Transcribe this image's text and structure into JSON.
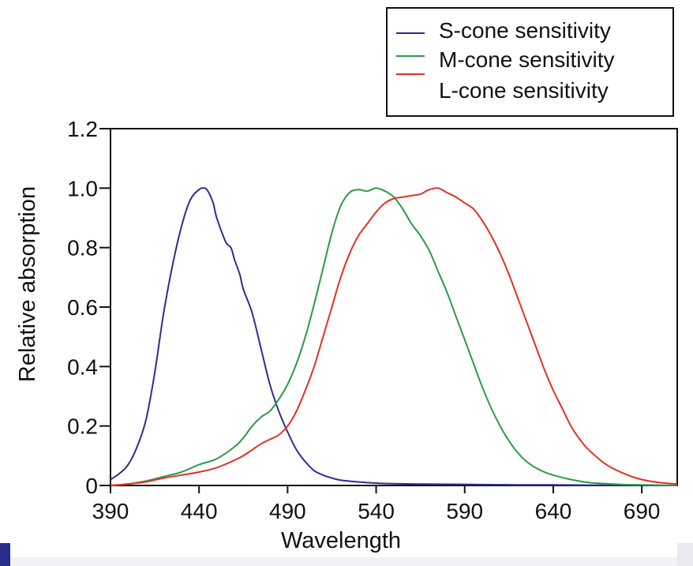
{
  "chart_data": {
    "type": "line",
    "xlabel": "Wavelength",
    "ylabel": "Relative absorption",
    "xlim": [
      390,
      710
    ],
    "ylim": [
      0,
      1.2
    ],
    "xticks": [
      390,
      440,
      490,
      540,
      590,
      640,
      690
    ],
    "yticks": [
      0,
      0.2,
      0.4,
      0.6,
      0.8,
      1.0,
      1.2
    ],
    "ytick_labels": [
      "0",
      "0.2",
      "0.4",
      "0.6",
      "0.8",
      "1.0",
      "1.2"
    ],
    "xtick_labels": [
      "390",
      "440",
      "490",
      "540",
      "590",
      "640",
      "690"
    ],
    "grid": false,
    "legend_position": "top-right",
    "legend_labels": [
      "S-cone sensitivity",
      "M-cone sensitivity",
      "L-cone sensitivity"
    ],
    "series": [
      {
        "name": "S-cone sensitivity",
        "color": "#2e2d8f",
        "x": [
          390,
          395,
          400,
          405,
          410,
          415,
          420,
          425,
          430,
          435,
          440,
          443,
          445,
          448,
          450,
          455,
          458,
          460,
          463,
          465,
          470,
          475,
          480,
          485,
          490,
          495,
          500,
          505,
          510,
          515,
          520,
          530,
          540,
          550,
          560,
          580,
          600,
          620,
          640,
          660,
          680,
          700,
          710
        ],
        "y": [
          0.02,
          0.04,
          0.07,
          0.13,
          0.22,
          0.38,
          0.58,
          0.74,
          0.87,
          0.96,
          0.995,
          1.0,
          0.99,
          0.95,
          0.9,
          0.82,
          0.8,
          0.76,
          0.71,
          0.66,
          0.58,
          0.46,
          0.34,
          0.25,
          0.18,
          0.12,
          0.08,
          0.05,
          0.035,
          0.025,
          0.018,
          0.012,
          0.008,
          0.006,
          0.005,
          0.004,
          0.003,
          0.002,
          0.002,
          0.001,
          0.001,
          0.0,
          0.0
        ]
      },
      {
        "name": "M-cone sensitivity",
        "color": "#2a9a4a",
        "x": [
          390,
          400,
          410,
          420,
          430,
          440,
          450,
          460,
          465,
          470,
          475,
          480,
          485,
          490,
          495,
          500,
          505,
          510,
          515,
          520,
          525,
          530,
          535,
          540,
          545,
          550,
          555,
          560,
          565,
          570,
          575,
          580,
          585,
          590,
          595,
          600,
          605,
          610,
          615,
          620,
          625,
          630,
          635,
          640,
          650,
          660,
          670,
          680,
          690,
          700,
          710
        ],
        "y": [
          0.0,
          0.005,
          0.015,
          0.03,
          0.045,
          0.07,
          0.09,
          0.13,
          0.16,
          0.2,
          0.23,
          0.25,
          0.29,
          0.34,
          0.41,
          0.5,
          0.61,
          0.73,
          0.85,
          0.94,
          0.985,
          0.995,
          0.99,
          1.0,
          0.99,
          0.97,
          0.93,
          0.88,
          0.84,
          0.79,
          0.72,
          0.65,
          0.57,
          0.49,
          0.41,
          0.33,
          0.26,
          0.2,
          0.15,
          0.11,
          0.08,
          0.06,
          0.045,
          0.035,
          0.02,
          0.01,
          0.006,
          0.003,
          0.002,
          0.001,
          0.0
        ]
      },
      {
        "name": "L-cone sensitivity",
        "color": "#e03127",
        "x": [
          390,
          400,
          410,
          420,
          430,
          440,
          450,
          460,
          465,
          470,
          475,
          480,
          485,
          490,
          495,
          500,
          505,
          510,
          515,
          520,
          525,
          530,
          535,
          540,
          545,
          550,
          555,
          560,
          565,
          570,
          575,
          580,
          585,
          590,
          595,
          600,
          605,
          610,
          615,
          620,
          625,
          630,
          635,
          640,
          645,
          650,
          655,
          660,
          670,
          680,
          690,
          700,
          710
        ],
        "y": [
          0.0,
          0.005,
          0.012,
          0.025,
          0.035,
          0.045,
          0.06,
          0.085,
          0.1,
          0.12,
          0.14,
          0.155,
          0.17,
          0.2,
          0.25,
          0.32,
          0.4,
          0.5,
          0.6,
          0.7,
          0.78,
          0.84,
          0.88,
          0.92,
          0.95,
          0.965,
          0.97,
          0.975,
          0.98,
          0.995,
          1.0,
          0.985,
          0.97,
          0.95,
          0.93,
          0.89,
          0.84,
          0.78,
          0.71,
          0.63,
          0.55,
          0.47,
          0.39,
          0.32,
          0.26,
          0.2,
          0.155,
          0.12,
          0.07,
          0.04,
          0.02,
          0.01,
          0.005
        ]
      }
    ]
  }
}
